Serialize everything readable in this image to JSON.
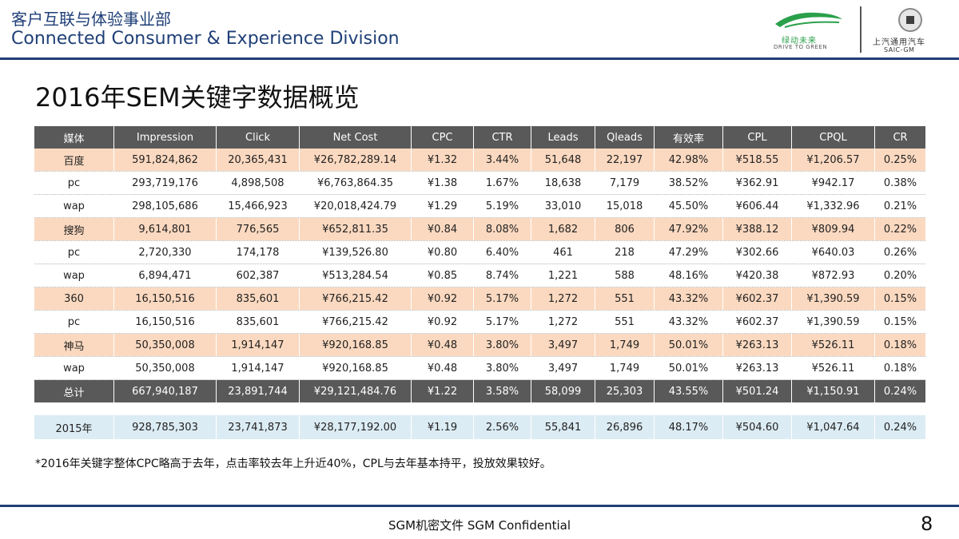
{
  "header": {
    "division_cn": "客户互联与体验事业部",
    "division_en": "Connected Consumer & Experience Division",
    "logo_green_cn": "绿动未来",
    "logo_green_en": "DRIVE TO GREEN",
    "logo_saic_cn": "上汽通用汽车",
    "logo_saic_en": "SAIC-GM"
  },
  "title": "2016年SEM关键字数据概览",
  "table": {
    "columns": [
      "媒体",
      "Impression",
      "Click",
      "Net Cost",
      "CPC",
      "CTR",
      "Leads",
      "Qleads",
      "有效率",
      "CPL",
      "CPQL",
      "CR"
    ],
    "rows": [
      {
        "type": "platform",
        "cells": [
          "百度",
          "591,824,862",
          "20,365,431",
          "¥26,782,289.14",
          "¥1.32",
          "3.44%",
          "51,648",
          "22,197",
          "42.98%",
          "¥518.55",
          "¥1,206.57",
          "0.25%"
        ]
      },
      {
        "type": "sub",
        "cells": [
          "pc",
          "293,719,176",
          "4,898,508",
          "¥6,763,864.35",
          "¥1.38",
          "1.67%",
          "18,638",
          "7,179",
          "38.52%",
          "¥362.91",
          "¥942.17",
          "0.38%"
        ]
      },
      {
        "type": "sub",
        "cells": [
          "wap",
          "298,105,686",
          "15,466,923",
          "¥20,018,424.79",
          "¥1.29",
          "5.19%",
          "33,010",
          "15,018",
          "45.50%",
          "¥606.44",
          "¥1,332.96",
          "0.21%"
        ]
      },
      {
        "type": "platform",
        "cells": [
          "搜狗",
          "9,614,801",
          "776,565",
          "¥652,811.35",
          "¥0.84",
          "8.08%",
          "1,682",
          "806",
          "47.92%",
          "¥388.12",
          "¥809.94",
          "0.22%"
        ]
      },
      {
        "type": "sub",
        "cells": [
          "pc",
          "2,720,330",
          "174,178",
          "¥139,526.80",
          "¥0.80",
          "6.40%",
          "461",
          "218",
          "47.29%",
          "¥302.66",
          "¥640.03",
          "0.26%"
        ]
      },
      {
        "type": "sub",
        "cells": [
          "wap",
          "6,894,471",
          "602,387",
          "¥513,284.54",
          "¥0.85",
          "8.74%",
          "1,221",
          "588",
          "48.16%",
          "¥420.38",
          "¥872.93",
          "0.20%"
        ]
      },
      {
        "type": "platform",
        "cells": [
          "360",
          "16,150,516",
          "835,601",
          "¥766,215.42",
          "¥0.92",
          "5.17%",
          "1,272",
          "551",
          "43.32%",
          "¥602.37",
          "¥1,390.59",
          "0.15%"
        ]
      },
      {
        "type": "sub",
        "cells": [
          "pc",
          "16,150,516",
          "835,601",
          "¥766,215.42",
          "¥0.92",
          "5.17%",
          "1,272",
          "551",
          "43.32%",
          "¥602.37",
          "¥1,390.59",
          "0.15%"
        ]
      },
      {
        "type": "platform",
        "cells": [
          "神马",
          "50,350,008",
          "1,914,147",
          "¥920,168.85",
          "¥0.48",
          "3.80%",
          "3,497",
          "1,749",
          "50.01%",
          "¥263.13",
          "¥526.11",
          "0.18%"
        ]
      },
      {
        "type": "sub",
        "cells": [
          "wap",
          "50,350,008",
          "1,914,147",
          "¥920,168.85",
          "¥0.48",
          "3.80%",
          "3,497",
          "1,749",
          "50.01%",
          "¥263.13",
          "¥526.11",
          "0.18%"
        ]
      },
      {
        "type": "total",
        "cells": [
          "总计",
          "667,940,187",
          "23,891,744",
          "¥29,121,484.76",
          "¥1.22",
          "3.58%",
          "58,099",
          "25,303",
          "43.55%",
          "¥501.24",
          "¥1,150.91",
          "0.24%"
        ]
      },
      {
        "type": "blank",
        "cells": [
          "",
          "",
          "",
          "",
          "",
          "",
          "",
          "",
          "",
          "",
          "",
          ""
        ]
      },
      {
        "type": "prev",
        "cells": [
          "2015年",
          "928,785,303",
          "23,741,873",
          "¥28,177,192.00",
          "¥1.19",
          "2.56%",
          "55,841",
          "26,896",
          "48.17%",
          "¥504.60",
          "¥1,047.64",
          "0.24%"
        ]
      }
    ]
  },
  "note": "*2016年关键字整体CPC略高于去年，点击率较去年上升近40%，CPL与去年基本持平，投放效果较好。",
  "footer": {
    "confidential": "SGM机密文件 SGM Confidential",
    "page_number": "8"
  },
  "colors": {
    "brand_blue": "#1f3f77",
    "header_row": "#595959",
    "platform_row": "#fbd9c0",
    "prev_year_row": "#dcecf4",
    "green_logo": "#2aa04a"
  }
}
